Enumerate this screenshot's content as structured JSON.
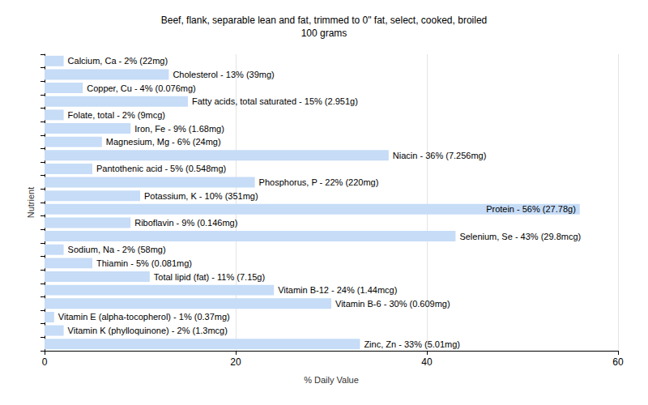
{
  "chart_data": {
    "type": "bar",
    "orientation": "horizontal",
    "title": "Beef, flank, separable lean and fat, trimmed to 0\" fat, select, cooked, broiled",
    "subtitle": "100 grams",
    "x_label": "% Daily Value",
    "y_label": "Nutrient",
    "categories": [
      "Calcium, Ca - 2% (22mg)",
      "Cholesterol - 13% (39mg)",
      "Copper, Cu - 4% (0.076mg)",
      "Fatty acids, total saturated - 15% (2.951g)",
      "Folate, total - 2% (9mcg)",
      "Iron, Fe - 9% (1.68mg)",
      "Magnesium, Mg - 6% (24mg)",
      "Niacin - 36% (7.256mg)",
      "Pantothenic acid - 5% (0.548mg)",
      "Phosphorus, P - 22% (220mg)",
      "Potassium, K - 10% (351mg)",
      "Protein - 56% (27.78g)",
      "Riboflavin - 9% (0.146mg)",
      "Selenium, Se - 43% (29.8mcg)",
      "Sodium, Na - 2% (58mg)",
      "Thiamin - 5% (0.081mg)",
      "Total lipid (fat) - 11% (7.15g)",
      "Vitamin B-12 - 24% (1.44mcg)",
      "Vitamin B-6 - 30% (0.609mg)",
      "Vitamin E (alpha-tocopherol) - 1% (0.37mg)",
      "Vitamin K (phylloquinone) - 2% (1.3mcg)",
      "Zinc, Zn - 33% (5.01mg)"
    ],
    "values": [
      2,
      13,
      4,
      15,
      2,
      9,
      6,
      36,
      5,
      22,
      10,
      56,
      9,
      43,
      2,
      5,
      11,
      24,
      30,
      1,
      2,
      33
    ],
    "color": "#c6dcf7",
    "xlim": [
      0,
      60
    ],
    "xticks": [
      0,
      20,
      40,
      60
    ],
    "grid": true,
    "tick_labels": "x"
  }
}
